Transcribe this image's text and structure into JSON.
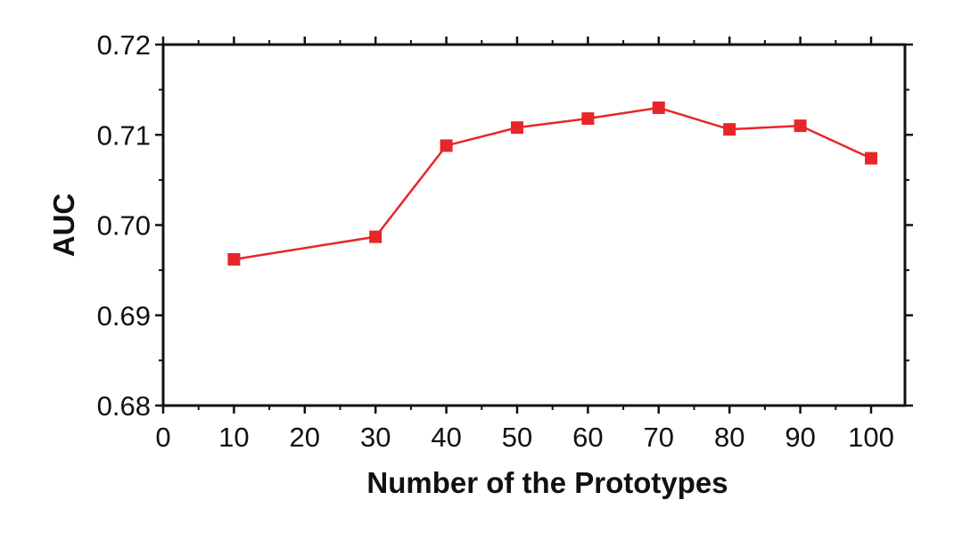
{
  "chart_data": {
    "type": "line",
    "title": "",
    "xlabel": "Number of the Prototypes",
    "ylabel": "AUC",
    "xlim": [
      0,
      105
    ],
    "ylim": [
      0.68,
      0.72
    ],
    "x_ticks": [
      0,
      10,
      20,
      30,
      40,
      50,
      60,
      70,
      80,
      90,
      100
    ],
    "y_ticks": [
      0.68,
      0.69,
      0.7,
      0.71,
      0.72
    ],
    "x_tick_labels": [
      "0",
      "10",
      "20",
      "30",
      "40",
      "50",
      "60",
      "70",
      "80",
      "90",
      "100"
    ],
    "y_tick_labels": [
      "0.68",
      "0.69",
      "0.70",
      "0.71",
      "0.72"
    ],
    "grid": false,
    "series": [
      {
        "color": "#e8262a",
        "marker": "square",
        "x": [
          10,
          30,
          40,
          50,
          60,
          70,
          80,
          90,
          100
        ],
        "y": [
          0.6962,
          0.6987,
          0.7088,
          0.7108,
          0.7118,
          0.713,
          0.7106,
          0.711,
          0.7074
        ]
      }
    ]
  }
}
